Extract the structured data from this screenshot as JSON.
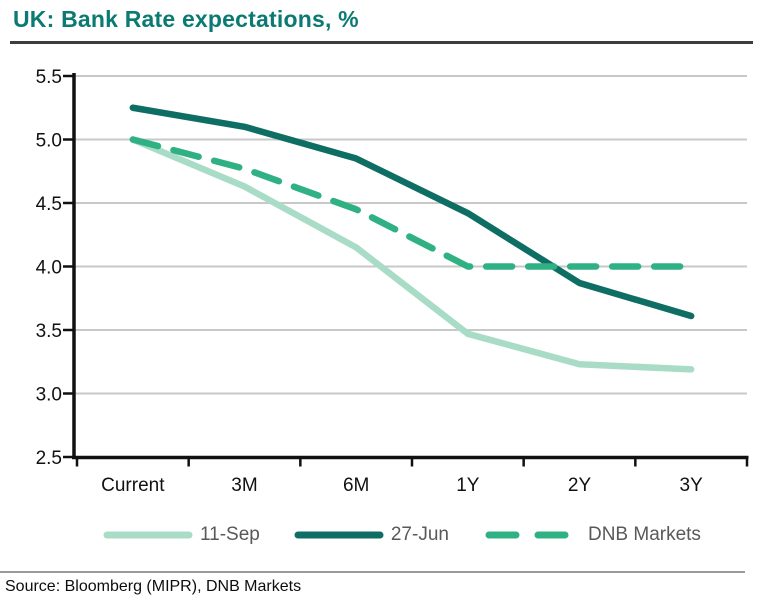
{
  "header": {
    "title": "UK: Bank Rate expectations, %",
    "title_color": "#0b7a72"
  },
  "footer": {
    "source": "Source: Bloomberg (MIPR), DNB Markets"
  },
  "chart_data": {
    "type": "line",
    "title": "UK: Bank Rate expectations, %",
    "categories": [
      "Current",
      "3M",
      "6M",
      "1Y",
      "2Y",
      "3Y"
    ],
    "series": [
      {
        "name": "11-Sep",
        "color": "#a9dcc7",
        "style": "solid",
        "values": [
          5.0,
          4.63,
          4.15,
          3.47,
          3.23,
          3.19
        ]
      },
      {
        "name": "27-Jun",
        "color": "#0f6e64",
        "style": "solid",
        "values": [
          5.25,
          5.1,
          4.85,
          4.42,
          3.87,
          3.61
        ]
      },
      {
        "name": "DNB Markets",
        "color": "#2fb183",
        "style": "dashed",
        "values": [
          5.0,
          4.77,
          4.45,
          4.0,
          4.0,
          4.0
        ]
      }
    ],
    "ylim": [
      2.5,
      5.5
    ],
    "ytick_step": 0.5,
    "ytick_labels": [
      "5.5",
      "5.0",
      "4.5",
      "4.0",
      "3.5",
      "3.0",
      "2.5"
    ],
    "grid": "horizontal",
    "gridline_color": "#c8c8c8",
    "axis_color": "#111111",
    "tick_label_color": "#111111",
    "legend_position": "bottom",
    "legend_text_color": "#595959"
  }
}
